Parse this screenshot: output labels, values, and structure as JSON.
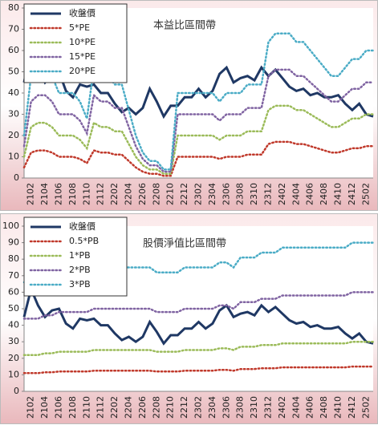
{
  "chart_data": [
    {
      "type": "line",
      "title": "本益比區間帶",
      "legend": "upper left",
      "categories": [
        null,
        "2102",
        null,
        "2104",
        null,
        "2106",
        null,
        "2108",
        null,
        "2110",
        null,
        "2112",
        null,
        "2202",
        null,
        "2204",
        null,
        "2206",
        null,
        "2208",
        null,
        "2210",
        null,
        "2212",
        null,
        "2302",
        null,
        "2304",
        null,
        "2306",
        null,
        "2308",
        null,
        "2310",
        null,
        "2312",
        null,
        "2402",
        null,
        "2404",
        null,
        "2406",
        null,
        "2408",
        null,
        "2410",
        null,
        "2412",
        null,
        "2502",
        null
      ],
      "ylim": [
        0,
        80
      ],
      "yticks": [
        0,
        10,
        20,
        30,
        40,
        50,
        60,
        70,
        80
      ],
      "series": [
        {
          "name": "收盤價",
          "color": "#1f3864",
          "line_style": "solid",
          "values": [
            45,
            62,
            52,
            45,
            49,
            50,
            41,
            38,
            44,
            43,
            44,
            40,
            40,
            35,
            31,
            33,
            30,
            33,
            42,
            36,
            29,
            34,
            34,
            38,
            38,
            42,
            38,
            41,
            49,
            52,
            45,
            47,
            48,
            46,
            52,
            48,
            51,
            47,
            43,
            41,
            42,
            39,
            40,
            38,
            38,
            39,
            35,
            32,
            35,
            30,
            29
          ]
        },
        {
          "name": "5*PE",
          "color": "#c0392b",
          "line_style": "dotted",
          "values": [
            5,
            12,
            13,
            13,
            12,
            10,
            10,
            10,
            9,
            7,
            13,
            12,
            12,
            11,
            11,
            8,
            5,
            3,
            2,
            2,
            1,
            1,
            10,
            10,
            10,
            10,
            10,
            10,
            9,
            10,
            10,
            10,
            11,
            11,
            11,
            16,
            17,
            17,
            17,
            16,
            16,
            15,
            14,
            13,
            12,
            12,
            13,
            14,
            14,
            15,
            15
          ]
        },
        {
          "name": "10*PE",
          "color": "#9bbb59",
          "line_style": "dotted",
          "values": [
            10,
            24,
            26,
            26,
            24,
            20,
            20,
            20,
            18,
            14,
            26,
            24,
            24,
            22,
            22,
            16,
            10,
            6,
            4,
            4,
            2,
            2,
            20,
            20,
            20,
            20,
            20,
            20,
            18,
            20,
            20,
            20,
            22,
            22,
            22,
            32,
            34,
            34,
            34,
            32,
            32,
            30,
            28,
            26,
            24,
            24,
            26,
            28,
            28,
            30,
            30
          ]
        },
        {
          "name": "15*PE",
          "color": "#8064a2",
          "line_style": "dotted",
          "values": [
            15,
            36,
            39,
            39,
            36,
            30,
            30,
            30,
            27,
            21,
            39,
            36,
            36,
            33,
            33,
            24,
            15,
            9,
            6,
            6,
            3,
            3,
            30,
            30,
            30,
            30,
            30,
            30,
            27,
            30,
            30,
            30,
            33,
            33,
            33,
            48,
            51,
            51,
            51,
            48,
            48,
            45,
            42,
            39,
            36,
            36,
            39,
            42,
            42,
            45,
            45
          ]
        },
        {
          "name": "20*PE",
          "color": "#4bacc6",
          "line_style": "dotted",
          "values": [
            20,
            48,
            52,
            52,
            48,
            40,
            40,
            40,
            36,
            28,
            52,
            48,
            48,
            44,
            44,
            32,
            20,
            12,
            8,
            8,
            4,
            4,
            40,
            40,
            40,
            40,
            40,
            40,
            36,
            40,
            40,
            40,
            44,
            44,
            44,
            64,
            68,
            68,
            68,
            64,
            64,
            60,
            56,
            52,
            48,
            48,
            52,
            56,
            56,
            60,
            60
          ]
        }
      ]
    },
    {
      "type": "line",
      "title": "股價淨值比區間帶",
      "legend": "upper left",
      "categories": [
        null,
        "2102",
        null,
        "2104",
        null,
        "2106",
        null,
        "2108",
        null,
        "2110",
        null,
        "2112",
        null,
        "2202",
        null,
        "2204",
        null,
        "2206",
        null,
        "2208",
        null,
        "2210",
        null,
        "2212",
        null,
        "2302",
        null,
        "2304",
        null,
        "2306",
        null,
        "2308",
        null,
        "2310",
        null,
        "2312",
        null,
        "2402",
        null,
        "2404",
        null,
        "2406",
        null,
        "2408",
        null,
        "2410",
        null,
        "2412",
        null,
        "2502",
        null
      ],
      "ylim": [
        0,
        100
      ],
      "yticks": [
        0,
        10,
        20,
        30,
        40,
        50,
        60,
        70,
        80,
        90,
        100
      ],
      "series": [
        {
          "name": "收盤價",
          "color": "#1f3864",
          "line_style": "solid",
          "values": [
            45,
            62,
            52,
            45,
            49,
            50,
            41,
            38,
            44,
            43,
            44,
            40,
            40,
            35,
            31,
            33,
            30,
            33,
            42,
            36,
            29,
            34,
            34,
            38,
            38,
            42,
            38,
            41,
            49,
            52,
            45,
            47,
            48,
            46,
            52,
            48,
            51,
            47,
            43,
            41,
            42,
            39,
            40,
            38,
            38,
            39,
            35,
            32,
            35,
            30,
            29
          ]
        },
        {
          "name": "0.5*PB",
          "color": "#c0392b",
          "line_style": "dotted",
          "values": [
            11,
            11,
            11,
            11.5,
            11.5,
            12,
            12,
            12,
            12,
            12,
            12.5,
            12.5,
            12.5,
            12.5,
            12.5,
            12.5,
            12.5,
            12.5,
            12.5,
            12,
            12,
            12,
            12,
            12.5,
            12.5,
            12.5,
            12.5,
            12.5,
            13,
            13,
            12.5,
            13.5,
            13.5,
            13.5,
            14,
            14,
            14,
            14.5,
            14.5,
            14.5,
            14.5,
            14.5,
            14.5,
            14.5,
            14.5,
            14.5,
            14.5,
            15,
            15,
            15,
            15
          ]
        },
        {
          "name": "1*PB",
          "color": "#9bbb59",
          "line_style": "dotted",
          "values": [
            22,
            22,
            22,
            23,
            23,
            24,
            24,
            24,
            24,
            24,
            25,
            25,
            25,
            25,
            25,
            25,
            25,
            25,
            25,
            24,
            24,
            24,
            24,
            25,
            25,
            25,
            25,
            25,
            26,
            26,
            25,
            27,
            27,
            27,
            28,
            28,
            28,
            29,
            29,
            29,
            29,
            29,
            29,
            29,
            29,
            29,
            29,
            30,
            30,
            30,
            30
          ]
        },
        {
          "name": "2*PB",
          "color": "#8064a2",
          "line_style": "dotted",
          "values": [
            44,
            44,
            44,
            46,
            46,
            48,
            48,
            48,
            48,
            48,
            50,
            50,
            50,
            50,
            50,
            50,
            50,
            50,
            50,
            48,
            48,
            48,
            48,
            50,
            50,
            50,
            50,
            50,
            52,
            52,
            50,
            54,
            54,
            54,
            56,
            56,
            56,
            58,
            58,
            58,
            58,
            58,
            58,
            58,
            58,
            58,
            58,
            60,
            60,
            60,
            60
          ]
        },
        {
          "name": "3*PB",
          "color": "#4bacc6",
          "line_style": "dotted",
          "values": [
            66,
            66,
            66,
            69,
            69,
            72,
            72,
            72,
            72,
            72,
            75,
            75,
            75,
            75,
            75,
            75,
            75,
            75,
            75,
            72,
            72,
            72,
            72,
            75,
            75,
            75,
            75,
            75,
            78,
            78,
            75,
            81,
            81,
            81,
            84,
            84,
            84,
            87,
            87,
            87,
            87,
            87,
            87,
            87,
            87,
            87,
            87,
            90,
            90,
            90,
            90
          ]
        }
      ]
    }
  ]
}
